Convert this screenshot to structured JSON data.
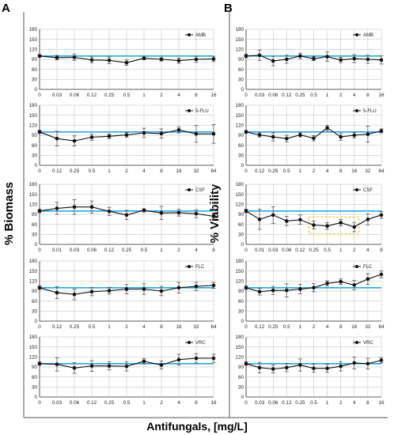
{
  "figure": {
    "panel_labels": [
      "A",
      "B"
    ],
    "ylabels": [
      "% Biomass",
      "% Viability"
    ],
    "xlabel": "Antifungals, [mg/L]"
  },
  "chart_data": [
    {
      "type": "line",
      "panel": "A",
      "legend": "AMB",
      "ylim": [
        0,
        180
      ],
      "yticks": [
        0,
        30,
        60,
        90,
        120,
        150,
        180
      ],
      "reference_line": 100,
      "legend_position": "top-right",
      "grid": true,
      "categories": [
        "0",
        "0.03",
        "0.06",
        "0.12",
        "0.25",
        "0.5",
        "1",
        "2",
        "4",
        "8",
        "16"
      ],
      "values": [
        100,
        95,
        96,
        88,
        87,
        80,
        93,
        90,
        86,
        90,
        91
      ],
      "errors": [
        4,
        7,
        9,
        9,
        10,
        8,
        4,
        5,
        8,
        9,
        8
      ]
    },
    {
      "type": "line",
      "panel": "A",
      "legend": "5-FLU",
      "ylim": [
        0,
        180
      ],
      "yticks": [
        0,
        30,
        60,
        90,
        120,
        150,
        180
      ],
      "reference_line": 100,
      "legend_position": "top-right",
      "grid": true,
      "categories": [
        "0",
        "0.12",
        "0.25",
        "0.5",
        "1",
        "2",
        "4",
        "8",
        "16",
        "32",
        "64"
      ],
      "values": [
        100,
        80,
        73,
        84,
        87,
        91,
        97,
        95,
        106,
        94,
        94
      ],
      "errors": [
        5,
        22,
        15,
        9,
        7,
        7,
        14,
        14,
        9,
        25,
        28
      ]
    },
    {
      "type": "line",
      "panel": "A",
      "legend": "CSF",
      "ylim": [
        0,
        180
      ],
      "yticks": [
        0,
        30,
        60,
        90,
        120,
        150,
        180
      ],
      "reference_line": 100,
      "legend_position": "top-right",
      "grid": true,
      "categories": [
        "0",
        "0.01",
        "0.03",
        "0.06",
        "0.12",
        "0.25",
        "0.5",
        "1",
        "2",
        "4",
        "8"
      ],
      "values": [
        100,
        108,
        112,
        112,
        99,
        88,
        102,
        94,
        95,
        92,
        84
      ],
      "errors": [
        5,
        18,
        22,
        18,
        12,
        14,
        5,
        20,
        10,
        12,
        8
      ]
    },
    {
      "type": "line",
      "panel": "A",
      "legend": "FLC",
      "ylim": [
        0,
        180
      ],
      "yticks": [
        0,
        30,
        60,
        90,
        120,
        150,
        180
      ],
      "reference_line": 100,
      "legend_position": "top-right",
      "grid": true,
      "categories": [
        "0",
        "0.12",
        "0.25",
        "0.5",
        "1",
        "2",
        "4",
        "8",
        "16",
        "32",
        "64"
      ],
      "values": [
        100,
        85,
        80,
        88,
        91,
        96,
        96,
        90,
        100,
        104,
        107
      ],
      "errors": [
        5,
        18,
        16,
        12,
        10,
        14,
        16,
        14,
        16,
        12,
        9
      ]
    },
    {
      "type": "line",
      "panel": "A",
      "legend": "VRC",
      "ylim": [
        0,
        180
      ],
      "yticks": [
        0,
        30,
        60,
        90,
        120,
        150,
        180
      ],
      "reference_line": 100,
      "legend_position": "top-right",
      "grid": true,
      "categories": [
        "0",
        "0.03",
        "0.06",
        "0.12",
        "0.25",
        "0.5",
        "1",
        "2",
        "4",
        "8",
        "16"
      ],
      "values": [
        100,
        98,
        87,
        93,
        93,
        92,
        107,
        96,
        112,
        116,
        116
      ],
      "errors": [
        5,
        20,
        16,
        16,
        12,
        14,
        8,
        12,
        16,
        14,
        12
      ]
    },
    {
      "type": "line",
      "panel": "B",
      "legend": "AMB",
      "ylim": [
        0,
        180
      ],
      "yticks": [
        0,
        30,
        60,
        90,
        120,
        150,
        180
      ],
      "reference_line": 100,
      "legend_position": "top-right",
      "grid": true,
      "categories": [
        "0",
        "0.03",
        "0.06",
        "0.12",
        "0.25",
        "0.5",
        "1",
        "2",
        "4",
        "8",
        "16"
      ],
      "values": [
        100,
        102,
        85,
        90,
        100,
        92,
        98,
        88,
        92,
        90,
        88
      ],
      "errors": [
        5,
        16,
        14,
        12,
        8,
        6,
        14,
        8,
        12,
        12,
        12
      ]
    },
    {
      "type": "line",
      "panel": "B",
      "legend": "5-FLU",
      "ylim": [
        0,
        180
      ],
      "yticks": [
        0,
        30,
        60,
        90,
        120,
        150,
        180
      ],
      "reference_line": 100,
      "legend_position": "top-right",
      "grid": true,
      "categories": [
        "0",
        "0.12",
        "0.25",
        "0.5",
        "1",
        "2",
        "4",
        "8",
        "16",
        "32",
        "64"
      ],
      "values": [
        100,
        91,
        85,
        80,
        91,
        81,
        112,
        85,
        90,
        93,
        103
      ],
      "errors": [
        4,
        6,
        12,
        10,
        6,
        8,
        8,
        10,
        8,
        24,
        6
      ]
    },
    {
      "type": "line",
      "panel": "B",
      "legend": "CSF",
      "ylim": [
        0,
        180
      ],
      "yticks": [
        0,
        30,
        60,
        90,
        120,
        150,
        180
      ],
      "reference_line": 100,
      "legend_position": "top-right",
      "grid": true,
      "categories": [
        "0",
        "0.01",
        "0.03",
        "0.06",
        "0.12",
        "0.25",
        "0.5",
        "1",
        "2",
        "4",
        "8"
      ],
      "values": [
        100,
        75,
        88,
        70,
        74,
        58,
        55,
        65,
        52,
        75,
        88
      ],
      "errors": [
        5,
        30,
        25,
        14,
        14,
        12,
        10,
        10,
        14,
        16,
        10
      ],
      "highlight_range": [
        "0.25",
        "2"
      ]
    },
    {
      "type": "line",
      "panel": "B",
      "legend": "FLC",
      "ylim": [
        0,
        180
      ],
      "yticks": [
        0,
        30,
        60,
        90,
        120,
        150,
        180
      ],
      "reference_line": 100,
      "legend_position": "top-right",
      "grid": true,
      "categories": [
        "0",
        "0.12",
        "0.25",
        "0.5",
        "1",
        "2",
        "4",
        "8",
        "16",
        "32",
        "64"
      ],
      "values": [
        100,
        88,
        92,
        92,
        96,
        100,
        113,
        118,
        108,
        126,
        140
      ],
      "errors": [
        5,
        10,
        12,
        20,
        14,
        12,
        8,
        8,
        14,
        16,
        10
      ]
    },
    {
      "type": "line",
      "panel": "B",
      "legend": "VRC",
      "ylim": [
        0,
        180
      ],
      "yticks": [
        0,
        30,
        60,
        90,
        120,
        150,
        180
      ],
      "reference_line": 100,
      "legend_position": "top-right",
      "grid": true,
      "categories": [
        "0",
        "0.03",
        "0.06",
        "0.12",
        "0.25",
        "0.5",
        "1",
        "2",
        "4",
        "8",
        "16"
      ],
      "values": [
        100,
        88,
        84,
        88,
        96,
        86,
        86,
        92,
        102,
        100,
        110
      ],
      "errors": [
        5,
        16,
        12,
        12,
        18,
        12,
        12,
        14,
        18,
        16,
        8
      ]
    }
  ],
  "colors": {
    "reference_line": "#29a8e0",
    "line": "#111111",
    "grid": "#bdbdbd",
    "highlight_box": "#e8c21c"
  }
}
